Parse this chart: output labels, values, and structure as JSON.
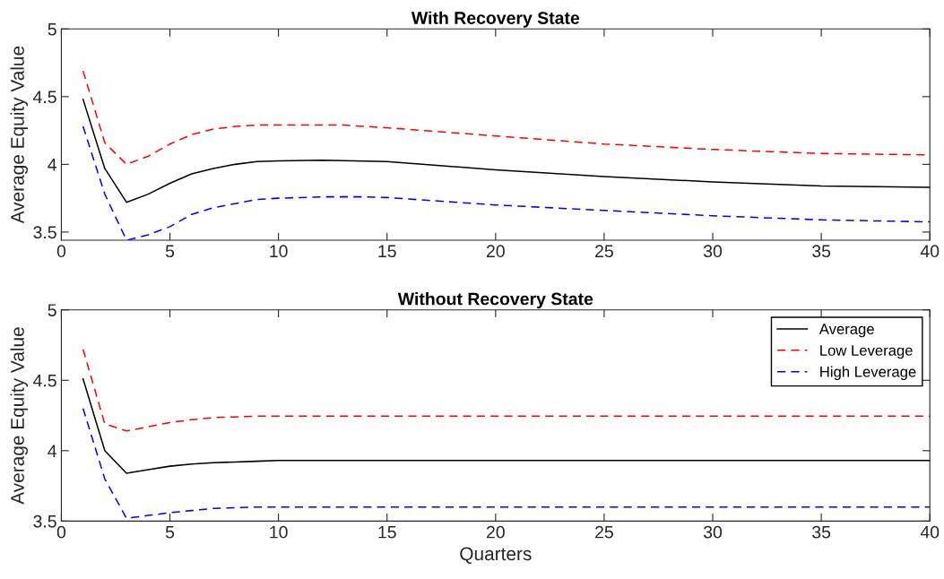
{
  "chart_data": [
    {
      "type": "line",
      "title": "With Recovery State",
      "ylabel": "Average Equity Value",
      "xlim": [
        0,
        40
      ],
      "xticks": [
        0,
        5,
        10,
        15,
        20,
        25,
        30,
        35,
        40
      ],
      "ylim": [
        3.44,
        5
      ],
      "yticks": [
        3.5,
        4,
        4.5,
        5
      ],
      "grid": false,
      "legend": false,
      "series": [
        {
          "color": "#000000",
          "line_style": "solid",
          "x": [
            1,
            2,
            3,
            4,
            5,
            6,
            7,
            8,
            9,
            10,
            12,
            15,
            20,
            25,
            30,
            35,
            40
          ],
          "values": [
            4.48,
            3.97,
            3.72,
            3.78,
            3.86,
            3.93,
            3.97,
            4.0,
            4.02,
            4.025,
            4.03,
            4.02,
            3.96,
            3.91,
            3.87,
            3.84,
            3.83
          ]
        },
        {
          "color": "#ff0000",
          "line_style": "dashed",
          "x": [
            1,
            2,
            3,
            4,
            5,
            6,
            7,
            8,
            9,
            10,
            13,
            15,
            20,
            25,
            30,
            35,
            40
          ],
          "values": [
            4.69,
            4.16,
            4.0,
            4.06,
            4.15,
            4.22,
            4.26,
            4.28,
            4.29,
            4.29,
            4.29,
            4.27,
            4.21,
            4.15,
            4.11,
            4.08,
            4.07
          ]
        },
        {
          "color": "#0000ff",
          "line_style": "dashed",
          "x": [
            1,
            2,
            3,
            4,
            5,
            6,
            7,
            8,
            9,
            10,
            12,
            14,
            15,
            20,
            25,
            30,
            35,
            40
          ],
          "values": [
            4.28,
            3.78,
            3.44,
            3.48,
            3.54,
            3.63,
            3.68,
            3.71,
            3.74,
            3.75,
            3.76,
            3.76,
            3.755,
            3.7,
            3.66,
            3.62,
            3.59,
            3.575
          ]
        }
      ]
    },
    {
      "type": "line",
      "title": "Without Recovery State",
      "ylabel": "Average Equity Value",
      "xlabel": "Quarters",
      "xlim": [
        0,
        40
      ],
      "xticks": [
        0,
        5,
        10,
        15,
        20,
        25,
        30,
        35,
        40
      ],
      "ylim": [
        3.5,
        5
      ],
      "yticks": [
        3.5,
        4,
        4.5,
        5
      ],
      "grid": false,
      "legend": "top right",
      "series": [
        {
          "name": "Average",
          "color": "#000000",
          "line_style": "solid",
          "x": [
            1,
            2,
            3,
            4,
            5,
            6,
            7,
            8,
            9,
            10,
            15,
            20,
            30,
            40
          ],
          "values": [
            4.51,
            4.0,
            3.84,
            3.865,
            3.89,
            3.905,
            3.915,
            3.92,
            3.925,
            3.93,
            3.93,
            3.93,
            3.93,
            3.93
          ]
        },
        {
          "name": "Low Leverage",
          "color": "#ff0000",
          "line_style": "dashed",
          "x": [
            1,
            2,
            3,
            4,
            5,
            6,
            7,
            8,
            9,
            10,
            15,
            20,
            30,
            40
          ],
          "values": [
            4.72,
            4.19,
            4.14,
            4.17,
            4.2,
            4.22,
            4.235,
            4.24,
            4.245,
            4.245,
            4.245,
            4.245,
            4.245,
            4.245
          ]
        },
        {
          "name": "High Leverage",
          "color": "#0000ff",
          "line_style": "dashed",
          "x": [
            1,
            2,
            3,
            4,
            5,
            6,
            7,
            8,
            9,
            10,
            15,
            20,
            30,
            40
          ],
          "values": [
            4.3,
            3.8,
            3.52,
            3.54,
            3.56,
            3.575,
            3.59,
            3.595,
            3.6,
            3.6,
            3.6,
            3.6,
            3.6,
            3.6
          ]
        }
      ]
    }
  ]
}
